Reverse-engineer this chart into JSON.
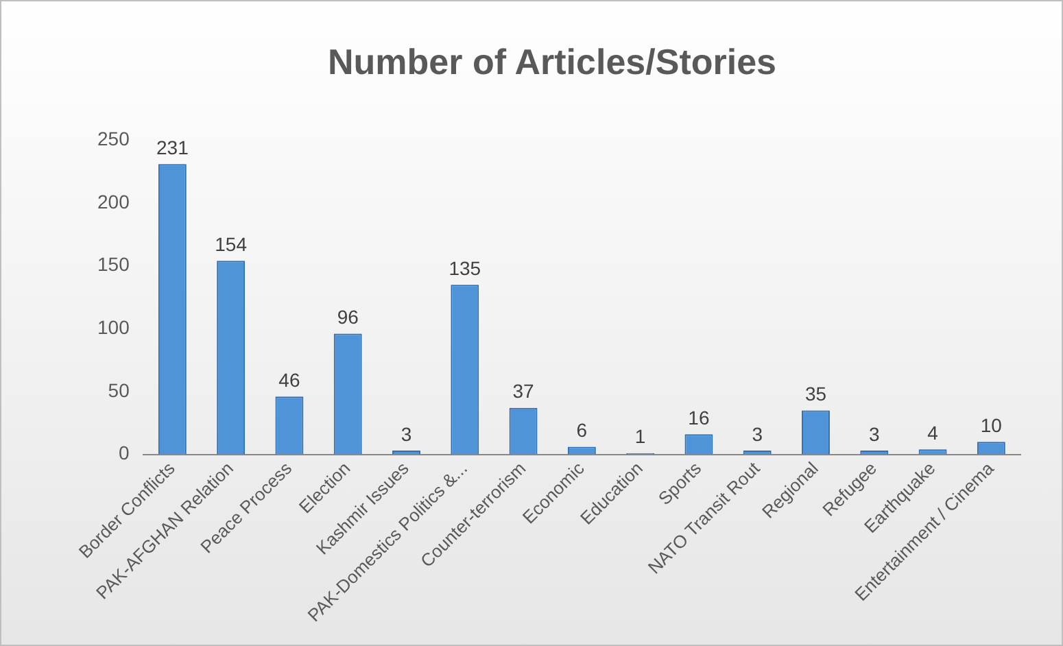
{
  "chart_data": {
    "type": "bar",
    "title": "Number of Articles/Stories",
    "categories": [
      "Border Conflicts",
      "PAK-AFGHAN Relation",
      "Peace Process",
      "Election",
      "Kashmir Issues",
      "PAK-Domestics Politics &...",
      "Counter-terrorism",
      "Economic",
      "Education",
      "Sports",
      "NATO Transit Rout",
      "Regional",
      "Refugee",
      "Earthquake",
      "Entertainment / Cinema"
    ],
    "values": [
      231,
      154,
      46,
      96,
      3,
      135,
      37,
      6,
      1,
      16,
      3,
      35,
      3,
      4,
      10
    ],
    "color": "#4f93d8",
    "ylim": [
      0,
      250
    ],
    "yticks": [
      0,
      50,
      100,
      150,
      200,
      250
    ],
    "grid": false,
    "data_labels": true
  }
}
